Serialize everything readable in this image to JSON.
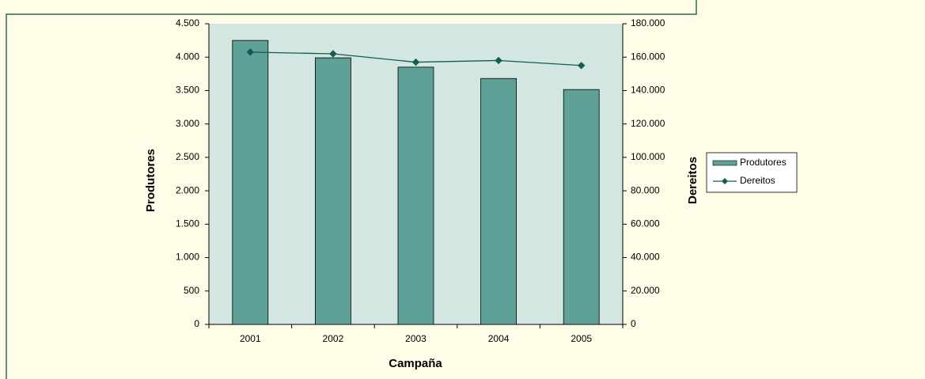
{
  "chart_data": {
    "type": "bar",
    "categories": [
      "2001",
      "2002",
      "2003",
      "2004",
      "2005"
    ],
    "x_label": "Campaña",
    "y_label": "Produtores",
    "y2_label": "Dereitos",
    "series": [
      {
        "name": "Produtores",
        "type": "bar",
        "color": "#5fa097",
        "values": [
          4250,
          3990,
          3850,
          3680,
          3515
        ]
      },
      {
        "name": "Dereitos",
        "type": "line",
        "axis": "y2",
        "color": "#0f5f50",
        "values": [
          163000,
          162000,
          157000,
          158000,
          155000
        ]
      }
    ],
    "ylim": [
      0,
      4500
    ],
    "yticks": [
      0,
      500,
      {
        "value": 1000,
        "label": "1.000"
      },
      {
        "value": 1500,
        "label": "1.500"
      },
      {
        "value": 2000,
        "label": "2.000"
      },
      {
        "value": 2500,
        "label": "2.500"
      },
      {
        "value": 3000,
        "label": "3.000"
      },
      {
        "value": 3500,
        "label": "3.500"
      },
      {
        "value": 4000,
        "label": "4.000"
      },
      {
        "value": 4500,
        "label": "4.500"
      }
    ],
    "y2lim": [
      0,
      180000
    ],
    "y2ticks": [
      0,
      {
        "value": 20000,
        "label": "20.000"
      },
      {
        "value": 40000,
        "label": "40.000"
      },
      {
        "value": 60000,
        "label": "60.000"
      },
      {
        "value": 80000,
        "label": "80.000"
      },
      {
        "value": 100000,
        "label": "100.000"
      },
      {
        "value": 120000,
        "label": "120.000"
      },
      {
        "value": 140000,
        "label": "140.000"
      },
      {
        "value": 160000,
        "label": "160.000"
      },
      {
        "value": 180000,
        "label": "180.000"
      }
    ],
    "legend": "right",
    "plot_background": "#d4e6e2"
  }
}
